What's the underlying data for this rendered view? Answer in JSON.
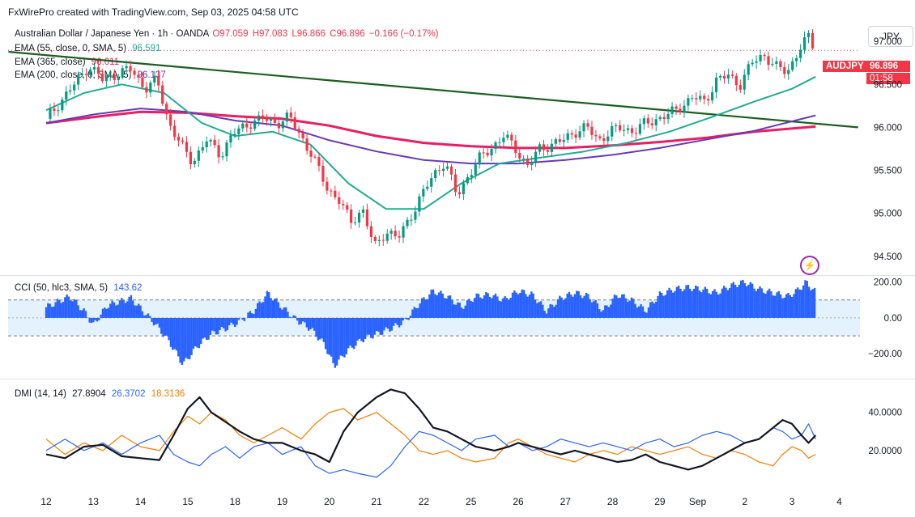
{
  "header": {
    "credit": "FxWirePro created with TradingView.com, Sep 03, 2025 04:58 UTC"
  },
  "currency_button": "JPY",
  "legend": {
    "symbol": "Australian Dollar / Japanese Yen · 1h · OANDA",
    "open": "O97.059",
    "high": "H97.083",
    "low": "L96.866",
    "close": "C96.896",
    "change": "−0.166 (−0.17%)",
    "ema55_label": "EMA (55, close, 0, SMA, 5)",
    "ema55_value": "96.591",
    "ema365_label": "EMA (365, close)",
    "ema365_value": "96.011",
    "ema200_label": "EMA (200, close, 0, SMA, 5)",
    "ema200_value": "96.137",
    "cci_label": "CCI (50, hlc3, SMA, 5)",
    "cci_value": "143.62",
    "dmi_label": "DMI (14, 14)",
    "dmi_adx": "27.8904",
    "dmi_plus": "26.3702",
    "dmi_minus": "18.3136"
  },
  "price_tags": {
    "symbol": "AUDJPY",
    "price": "96.896",
    "countdown": "01:58"
  },
  "colors": {
    "bull": "#089981",
    "bear": "#f23645",
    "ema55": "#22ab94",
    "ema200": "#673ab7",
    "ema365": "#e91e63",
    "trendline": "#1b5e20",
    "cci": "#2962ff",
    "cci_band": "#e3f2fd",
    "dmi_plus": "#2962ff",
    "dmi_minus": "#f57c00",
    "adx": "#131722"
  },
  "bolt_icon": "lightning-icon",
  "chart_data": [
    {
      "type": "line",
      "name": "Price",
      "x_tick_labels": [
        "12",
        "13",
        "14",
        "15",
        "18",
        "19",
        "20",
        "21",
        "22",
        "25",
        "26",
        "27",
        "28",
        "29",
        "Sep",
        "2",
        "3",
        "4"
      ],
      "y_ticks": [
        "97.000",
        "96.500",
        "96.000",
        "95.500",
        "95.000",
        "94.500"
      ],
      "y_tick_values": [
        97.0,
        96.5,
        96.0,
        95.5,
        95.0,
        94.5
      ],
      "ylim": [
        94.3,
        97.2
      ],
      "close_path": [
        [
          0,
          96.1
        ],
        [
          0.3,
          96.3
        ],
        [
          0.6,
          96.5
        ],
        [
          0.9,
          96.72
        ],
        [
          1.2,
          96.55
        ],
        [
          1.5,
          96.62
        ],
        [
          1.8,
          96.68
        ],
        [
          2.1,
          96.45
        ],
        [
          2.35,
          96.55
        ],
        [
          2.6,
          96.05
        ],
        [
          2.9,
          95.75
        ],
        [
          3.1,
          95.6
        ],
        [
          3.4,
          95.85
        ],
        [
          3.7,
          95.68
        ],
        [
          3.95,
          95.92
        ],
        [
          4.3,
          96.05
        ],
        [
          4.6,
          96.1
        ],
        [
          4.9,
          96.05
        ],
        [
          5.15,
          96.12
        ],
        [
          5.4,
          95.9
        ],
        [
          5.65,
          95.65
        ],
        [
          5.95,
          95.3
        ],
        [
          6.2,
          95.15
        ],
        [
          6.45,
          94.9
        ],
        [
          6.7,
          95.05
        ],
        [
          6.95,
          94.6
        ],
        [
          7.2,
          94.8
        ],
        [
          7.45,
          94.7
        ],
        [
          7.7,
          94.95
        ],
        [
          7.95,
          95.2
        ],
        [
          8.2,
          95.45
        ],
        [
          8.45,
          95.6
        ],
        [
          8.7,
          95.2
        ],
        [
          8.95,
          95.45
        ],
        [
          9.2,
          95.65
        ],
        [
          9.5,
          95.8
        ],
        [
          9.7,
          95.9
        ],
        [
          9.95,
          95.75
        ],
        [
          10.2,
          95.55
        ],
        [
          10.45,
          95.75
        ],
        [
          10.7,
          95.8
        ],
        [
          10.95,
          95.85
        ],
        [
          11.2,
          95.95
        ],
        [
          11.45,
          96.0
        ],
        [
          11.7,
          95.85
        ],
        [
          11.95,
          95.95
        ],
        [
          12.2,
          96.0
        ],
        [
          12.45,
          95.95
        ],
        [
          12.7,
          96.05
        ],
        [
          12.95,
          96.1
        ],
        [
          13.2,
          96.15
        ],
        [
          13.45,
          96.25
        ],
        [
          13.7,
          96.35
        ],
        [
          13.95,
          96.3
        ],
        [
          14.2,
          96.55
        ],
        [
          14.45,
          96.6
        ],
        [
          14.7,
          96.5
        ],
        [
          14.95,
          96.75
        ],
        [
          15.2,
          96.85
        ],
        [
          15.45,
          96.7
        ],
        [
          15.7,
          96.65
        ],
        [
          15.95,
          96.9
        ],
        [
          16.15,
          97.05
        ],
        [
          16.3,
          96.9
        ]
      ],
      "ema55": [
        [
          0,
          96.2
        ],
        [
          0.8,
          96.4
        ],
        [
          1.6,
          96.5
        ],
        [
          2.5,
          96.4
        ],
        [
          3.3,
          96.05
        ],
        [
          4.0,
          95.9
        ],
        [
          4.8,
          95.95
        ],
        [
          5.6,
          95.8
        ],
        [
          6.4,
          95.35
        ],
        [
          7.2,
          95.05
        ],
        [
          8.0,
          95.05
        ],
        [
          8.8,
          95.35
        ],
        [
          9.6,
          95.58
        ],
        [
          10.5,
          95.65
        ],
        [
          11.4,
          95.72
        ],
        [
          12.3,
          95.82
        ],
        [
          13.2,
          95.95
        ],
        [
          14.1,
          96.12
        ],
        [
          15.0,
          96.3
        ],
        [
          15.8,
          96.45
        ],
        [
          16.3,
          96.59
        ]
      ],
      "ema200": [
        [
          0,
          96.05
        ],
        [
          1.0,
          96.15
        ],
        [
          2.0,
          96.22
        ],
        [
          3.0,
          96.18
        ],
        [
          4.0,
          96.08
        ],
        [
          5.0,
          96.02
        ],
        [
          6.0,
          95.85
        ],
        [
          7.0,
          95.72
        ],
        [
          8.0,
          95.62
        ],
        [
          9.0,
          95.58
        ],
        [
          10.0,
          95.58
        ],
        [
          11.0,
          95.62
        ],
        [
          12.0,
          95.68
        ],
        [
          13.0,
          95.76
        ],
        [
          14.0,
          95.86
        ],
        [
          15.0,
          95.96
        ],
        [
          16.3,
          96.14
        ]
      ],
      "ema365": [
        [
          0,
          96.05
        ],
        [
          1.0,
          96.12
        ],
        [
          2.0,
          96.18
        ],
        [
          3.0,
          96.17
        ],
        [
          4.0,
          96.13
        ],
        [
          5.0,
          96.1
        ],
        [
          6.0,
          96.02
        ],
        [
          7.0,
          95.9
        ],
        [
          8.0,
          95.82
        ],
        [
          9.0,
          95.78
        ],
        [
          10.0,
          95.76
        ],
        [
          11.0,
          95.76
        ],
        [
          12.0,
          95.79
        ],
        [
          13.0,
          95.83
        ],
        [
          14.0,
          95.88
        ],
        [
          15.0,
          95.95
        ],
        [
          16.3,
          96.01
        ]
      ],
      "trendline": [
        [
          -0.8,
          96.88
        ],
        [
          17.2,
          96.0
        ]
      ],
      "last_price": 96.896
    },
    {
      "type": "bar",
      "name": "CCI",
      "y_ticks": [
        "200.00",
        "0.00",
        "−200.00"
      ],
      "y_tick_values": [
        200,
        0,
        -200
      ],
      "ylim": [
        -330,
        230
      ],
      "band": [
        100,
        -100
      ],
      "segments": [
        [
          0.0,
          60
        ],
        [
          0.5,
          120
        ],
        [
          0.8,
          40
        ],
        [
          1.0,
          -40
        ],
        [
          1.3,
          70
        ],
        [
          1.8,
          110
        ],
        [
          2.3,
          -30
        ],
        [
          2.6,
          -130
        ],
        [
          2.9,
          -260
        ],
        [
          3.2,
          -160
        ],
        [
          3.5,
          -90
        ],
        [
          3.8,
          -60
        ],
        [
          4.1,
          -20
        ],
        [
          4.4,
          40
        ],
        [
          4.7,
          140
        ],
        [
          5.0,
          60
        ],
        [
          5.3,
          -10
        ],
        [
          5.6,
          -60
        ],
        [
          5.9,
          -150
        ],
        [
          6.1,
          -270
        ],
        [
          6.4,
          -180
        ],
        [
          6.7,
          -120
        ],
        [
          7.0,
          -90
        ],
        [
          7.3,
          -60
        ],
        [
          7.6,
          -20
        ],
        [
          7.9,
          80
        ],
        [
          8.2,
          150
        ],
        [
          8.5,
          120
        ],
        [
          8.8,
          60
        ],
        [
          9.1,
          120
        ],
        [
          9.4,
          130
        ],
        [
          9.7,
          100
        ],
        [
          10.0,
          150
        ],
        [
          10.3,
          130
        ],
        [
          10.6,
          40
        ],
        [
          10.9,
          110
        ],
        [
          11.2,
          140
        ],
        [
          11.5,
          120
        ],
        [
          11.8,
          40
        ],
        [
          12.1,
          130
        ],
        [
          12.4,
          100
        ],
        [
          12.7,
          40
        ],
        [
          13.0,
          130
        ],
        [
          13.3,
          160
        ],
        [
          13.6,
          170
        ],
        [
          13.9,
          160
        ],
        [
          14.2,
          140
        ],
        [
          14.5,
          180
        ],
        [
          14.8,
          200
        ],
        [
          15.1,
          160
        ],
        [
          15.4,
          140
        ],
        [
          15.7,
          120
        ],
        [
          15.9,
          150
        ],
        [
          16.1,
          200
        ],
        [
          16.3,
          144
        ]
      ],
      "last_value": 143.62
    },
    {
      "type": "line",
      "name": "DMI",
      "y_ticks": [
        "40.0000",
        "20.0000"
      ],
      "y_tick_values": [
        40,
        20
      ],
      "ylim": [
        0,
        56
      ],
      "adx": [
        [
          0,
          18
        ],
        [
          0.4,
          16
        ],
        [
          0.8,
          22
        ],
        [
          1.2,
          23
        ],
        [
          1.6,
          17
        ],
        [
          2.0,
          16
        ],
        [
          2.4,
          15
        ],
        [
          2.7,
          28
        ],
        [
          3.0,
          42
        ],
        [
          3.25,
          48
        ],
        [
          3.5,
          40
        ],
        [
          3.8,
          35
        ],
        [
          4.1,
          30
        ],
        [
          4.4,
          26
        ],
        [
          4.7,
          24
        ],
        [
          5.0,
          24
        ],
        [
          5.4,
          20
        ],
        [
          5.7,
          18
        ],
        [
          6.0,
          14
        ],
        [
          6.3,
          30
        ],
        [
          6.6,
          40
        ],
        [
          7.0,
          48
        ],
        [
          7.3,
          52
        ],
        [
          7.6,
          50
        ],
        [
          7.9,
          42
        ],
        [
          8.2,
          32
        ],
        [
          8.5,
          30
        ],
        [
          8.8,
          26
        ],
        [
          9.1,
          22
        ],
        [
          9.5,
          20
        ],
        [
          9.8,
          22
        ],
        [
          10.0,
          24
        ],
        [
          10.3,
          22
        ],
        [
          10.6,
          20
        ],
        [
          10.9,
          18
        ],
        [
          11.2,
          20
        ],
        [
          11.5,
          18
        ],
        [
          11.8,
          16
        ],
        [
          12.1,
          14
        ],
        [
          12.4,
          15
        ],
        [
          12.7,
          18
        ],
        [
          13.0,
          14
        ],
        [
          13.3,
          12
        ],
        [
          13.6,
          10
        ],
        [
          13.9,
          12
        ],
        [
          14.2,
          16
        ],
        [
          14.5,
          20
        ],
        [
          14.8,
          24
        ],
        [
          15.1,
          26
        ],
        [
          15.4,
          32
        ],
        [
          15.6,
          36
        ],
        [
          15.8,
          34
        ],
        [
          16.0,
          28
        ],
        [
          16.15,
          24
        ],
        [
          16.3,
          28
        ]
      ],
      "plus_di": [
        [
          0,
          20
        ],
        [
          0.4,
          26
        ],
        [
          0.8,
          20
        ],
        [
          1.2,
          24
        ],
        [
          1.6,
          18
        ],
        [
          2.0,
          24
        ],
        [
          2.4,
          28
        ],
        [
          2.7,
          18
        ],
        [
          3.0,
          14
        ],
        [
          3.25,
          12
        ],
        [
          3.5,
          18
        ],
        [
          3.8,
          22
        ],
        [
          4.1,
          16
        ],
        [
          4.4,
          22
        ],
        [
          4.7,
          24
        ],
        [
          5.0,
          18
        ],
        [
          5.4,
          22
        ],
        [
          5.7,
          12
        ],
        [
          6.0,
          8
        ],
        [
          6.3,
          10
        ],
        [
          6.6,
          8
        ],
        [
          7.0,
          6
        ],
        [
          7.3,
          12
        ],
        [
          7.6,
          22
        ],
        [
          7.9,
          30
        ],
        [
          8.2,
          28
        ],
        [
          8.5,
          24
        ],
        [
          8.8,
          20
        ],
        [
          9.1,
          26
        ],
        [
          9.5,
          28
        ],
        [
          9.8,
          22
        ],
        [
          10.0,
          24
        ],
        [
          10.3,
          20
        ],
        [
          10.6,
          22
        ],
        [
          10.9,
          26
        ],
        [
          11.2,
          24
        ],
        [
          11.5,
          22
        ],
        [
          11.8,
          24
        ],
        [
          12.1,
          22
        ],
        [
          12.4,
          20
        ],
        [
          12.7,
          24
        ],
        [
          13.0,
          26
        ],
        [
          13.3,
          22
        ],
        [
          13.6,
          24
        ],
        [
          13.9,
          28
        ],
        [
          14.2,
          30
        ],
        [
          14.5,
          28
        ],
        [
          14.8,
          24
        ],
        [
          15.1,
          26
        ],
        [
          15.4,
          32
        ],
        [
          15.6,
          30
        ],
        [
          15.8,
          26
        ],
        [
          16.0,
          28
        ],
        [
          16.15,
          34
        ],
        [
          16.3,
          26
        ]
      ],
      "minus_di": [
        [
          0,
          26
        ],
        [
          0.4,
          18
        ],
        [
          0.8,
          24
        ],
        [
          1.2,
          20
        ],
        [
          1.6,
          28
        ],
        [
          2.0,
          22
        ],
        [
          2.4,
          20
        ],
        [
          2.7,
          30
        ],
        [
          3.0,
          38
        ],
        [
          3.25,
          34
        ],
        [
          3.5,
          40
        ],
        [
          3.8,
          36
        ],
        [
          4.1,
          28
        ],
        [
          4.4,
          24
        ],
        [
          4.7,
          28
        ],
        [
          5.0,
          32
        ],
        [
          5.4,
          26
        ],
        [
          5.7,
          34
        ],
        [
          6.0,
          40
        ],
        [
          6.3,
          42
        ],
        [
          6.6,
          36
        ],
        [
          7.0,
          40
        ],
        [
          7.3,
          34
        ],
        [
          7.6,
          28
        ],
        [
          7.9,
          20
        ],
        [
          8.2,
          18
        ],
        [
          8.5,
          20
        ],
        [
          8.8,
          16
        ],
        [
          9.1,
          14
        ],
        [
          9.5,
          16
        ],
        [
          9.8,
          24
        ],
        [
          10.0,
          26
        ],
        [
          10.3,
          22
        ],
        [
          10.6,
          18
        ],
        [
          10.9,
          16
        ],
        [
          11.2,
          14
        ],
        [
          11.5,
          18
        ],
        [
          11.8,
          20
        ],
        [
          12.1,
          18
        ],
        [
          12.4,
          22
        ],
        [
          12.7,
          20
        ],
        [
          13.0,
          18
        ],
        [
          13.3,
          20
        ],
        [
          13.6,
          22
        ],
        [
          13.9,
          18
        ],
        [
          14.2,
          16
        ],
        [
          14.5,
          20
        ],
        [
          14.8,
          18
        ],
        [
          15.1,
          14
        ],
        [
          15.4,
          12
        ],
        [
          15.6,
          18
        ],
        [
          15.8,
          22
        ],
        [
          16.0,
          20
        ],
        [
          16.15,
          16
        ],
        [
          16.3,
          18
        ]
      ]
    }
  ]
}
